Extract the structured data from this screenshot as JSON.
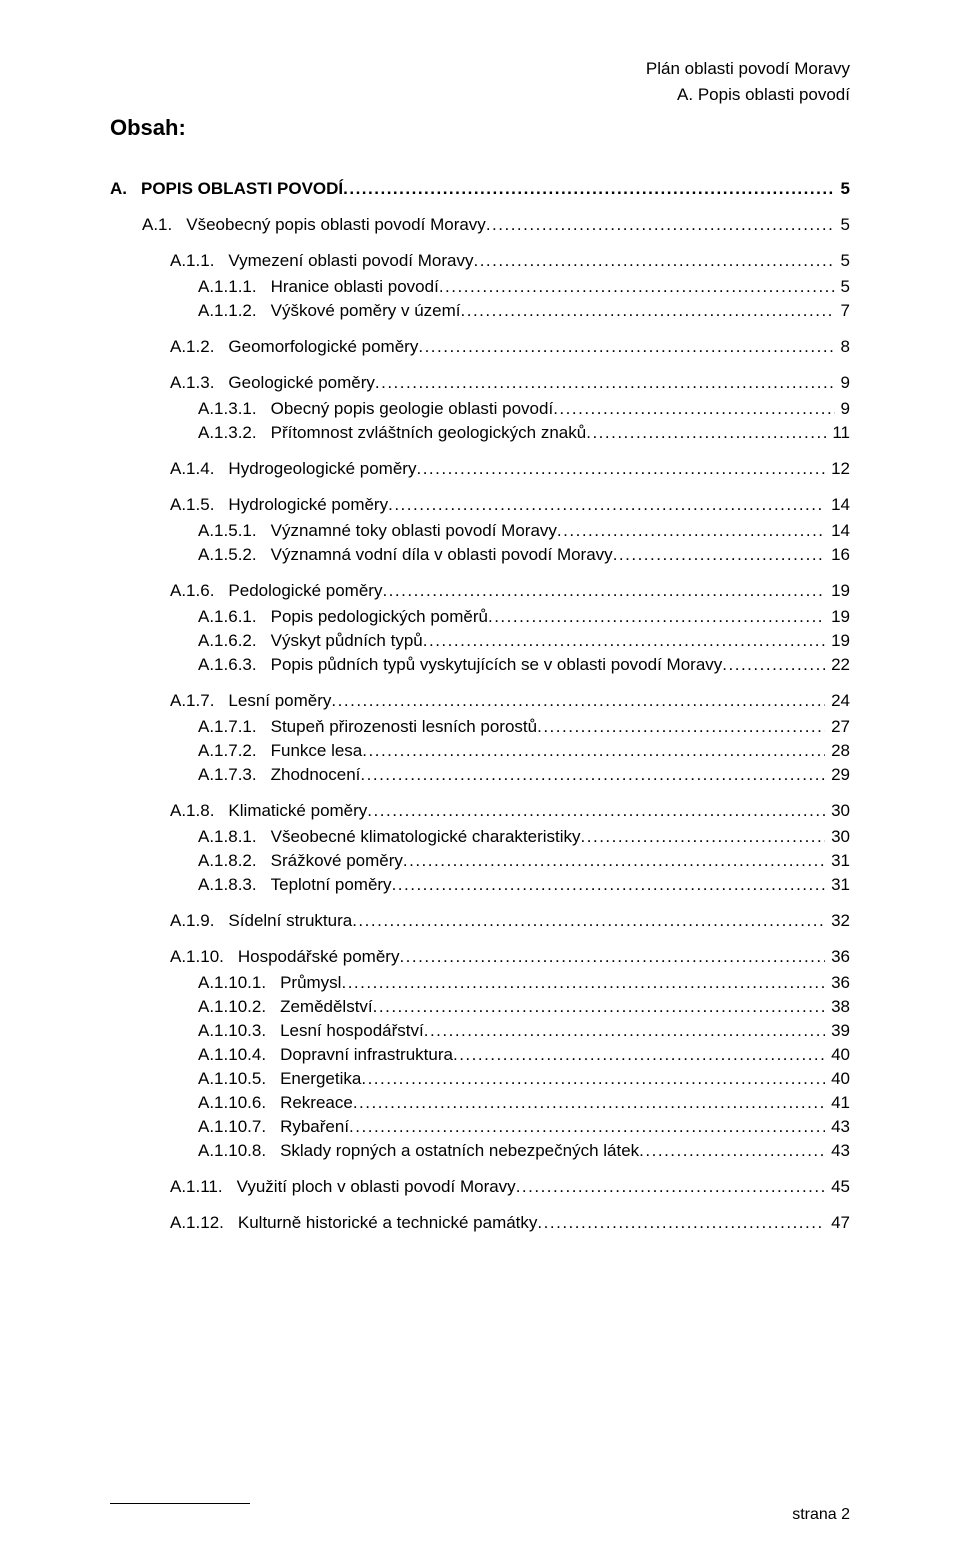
{
  "header": {
    "line1": "Plán oblasti povodí Moravy",
    "line2": "A. Popis oblasti povodí"
  },
  "obsah_label": "Obsah:",
  "footer": "strana 2",
  "toc": [
    {
      "level": 0,
      "num": "A.",
      "label": "POPIS OBLASTI POVODÍ",
      "page": "5"
    },
    {
      "level": 1,
      "num": "A.1.",
      "label": "Všeobecný popis oblasti povodí Moravy",
      "page": "5",
      "gap": true
    },
    {
      "level": 2,
      "num": "A.1.1.",
      "label": "Vymezení oblasti povodí Moravy",
      "page": "5",
      "gap": true
    },
    {
      "level": 3,
      "num": "A.1.1.1.",
      "label": "Hranice oblasti povodí",
      "page": "5"
    },
    {
      "level": 3,
      "num": "A.1.1.2.",
      "label": "Výškové poměry v území",
      "page": "7"
    },
    {
      "level": 2,
      "num": "A.1.2.",
      "label": "Geomorfologické poměry",
      "page": "8",
      "gap": true
    },
    {
      "level": 2,
      "num": "A.1.3.",
      "label": "Geologické poměry",
      "page": "9",
      "gap": true
    },
    {
      "level": 3,
      "num": "A.1.3.1.",
      "label": "Obecný popis geologie oblasti povodí",
      "page": "9"
    },
    {
      "level": 3,
      "num": "A.1.3.2.",
      "label": "Přítomnost zvláštních geologických znaků",
      "page": "11"
    },
    {
      "level": 2,
      "num": "A.1.4.",
      "label": "Hydrogeologické poměry",
      "page": "12",
      "gap": true
    },
    {
      "level": 2,
      "num": "A.1.5.",
      "label": "Hydrologické poměry",
      "page": "14",
      "gap": true
    },
    {
      "level": 3,
      "num": "A.1.5.1.",
      "label": "Významné toky oblasti povodí Moravy",
      "page": "14"
    },
    {
      "level": 3,
      "num": "A.1.5.2.",
      "label": "Významná vodní díla v oblasti povodí Moravy",
      "page": "16"
    },
    {
      "level": 2,
      "num": "A.1.6.",
      "label": "Pedologické poměry",
      "page": "19",
      "gap": true
    },
    {
      "level": 3,
      "num": "A.1.6.1.",
      "label": "Popis pedologických poměrů",
      "page": "19"
    },
    {
      "level": 3,
      "num": "A.1.6.2.",
      "label": "Výskyt půdních typů",
      "page": "19"
    },
    {
      "level": 3,
      "num": "A.1.6.3.",
      "label": "Popis půdních typů vyskytujících se v oblasti povodí Moravy",
      "page": "22"
    },
    {
      "level": 2,
      "num": "A.1.7.",
      "label": "Lesní poměry",
      "page": "24",
      "gap": true
    },
    {
      "level": 3,
      "num": "A.1.7.1.",
      "label": "Stupeň přirozenosti lesních porostů",
      "page": "27"
    },
    {
      "level": 3,
      "num": "A.1.7.2.",
      "label": "Funkce lesa",
      "page": "28"
    },
    {
      "level": 3,
      "num": "A.1.7.3.",
      "label": "Zhodnocení",
      "page": "29"
    },
    {
      "level": 2,
      "num": "A.1.8.",
      "label": "Klimatické poměry",
      "page": "30",
      "gap": true
    },
    {
      "level": 3,
      "num": "A.1.8.1.",
      "label": "Všeobecné klimatologické charakteristiky",
      "page": "30"
    },
    {
      "level": 3,
      "num": "A.1.8.2.",
      "label": "Srážkové poměry",
      "page": "31"
    },
    {
      "level": 3,
      "num": "A.1.8.3.",
      "label": "Teplotní poměry",
      "page": "31"
    },
    {
      "level": 2,
      "num": "A.1.9.",
      "label": "Sídelní struktura",
      "page": "32",
      "gap": true
    },
    {
      "level": 2,
      "num": "A.1.10.",
      "label": "Hospodářské poměry",
      "page": "36",
      "gap": true
    },
    {
      "level": 3,
      "num": "A.1.10.1.",
      "label": "Průmysl",
      "page": "36"
    },
    {
      "level": 3,
      "num": "A.1.10.2.",
      "label": "Zemědělství",
      "page": "38"
    },
    {
      "level": 3,
      "num": "A.1.10.3.",
      "label": "Lesní hospodářství",
      "page": "39"
    },
    {
      "level": 3,
      "num": "A.1.10.4.",
      "label": "Dopravní infrastruktura",
      "page": "40"
    },
    {
      "level": 3,
      "num": "A.1.10.5.",
      "label": "Energetika",
      "page": "40"
    },
    {
      "level": 3,
      "num": "A.1.10.6.",
      "label": "Rekreace",
      "page": "41"
    },
    {
      "level": 3,
      "num": "A.1.10.7.",
      "label": "Rybaření",
      "page": "43"
    },
    {
      "level": 3,
      "num": "A.1.10.8.",
      "label": "Sklady ropných a ostatních nebezpečných látek",
      "page": "43"
    },
    {
      "level": 2,
      "num": "A.1.11.",
      "label": "Využití ploch v oblasti povodí Moravy",
      "page": "45",
      "gap": true
    },
    {
      "level": 2,
      "num": "A.1.12.",
      "label": "Kulturně historické a technické památky",
      "page": "47",
      "gap": true
    }
  ]
}
